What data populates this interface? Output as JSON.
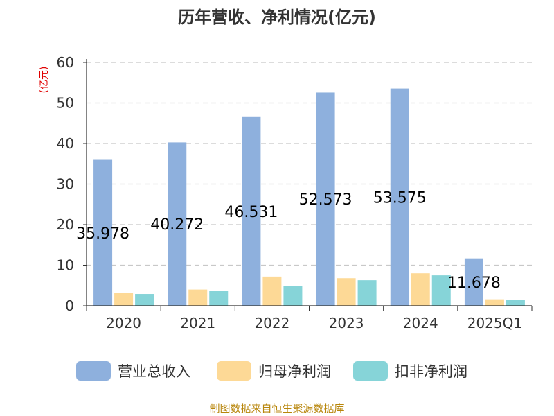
{
  "chart_data": {
    "type": "bar",
    "title": "历年营收、净利情况(亿元)",
    "ylabel": "(亿元)",
    "ylim": [
      0,
      60
    ],
    "yticks": [
      0,
      10,
      20,
      30,
      40,
      50,
      60
    ],
    "grid": true,
    "legend_position": "bottom",
    "categories": [
      "2020",
      "2021",
      "2022",
      "2023",
      "2024",
      "2025Q1"
    ],
    "series": [
      {
        "name": "营业总收入",
        "color": "#8eb0dd",
        "values": [
          35.978,
          40.272,
          46.531,
          52.573,
          53.575,
          11.678
        ],
        "labels": [
          "35.978",
          "40.272",
          "46.531",
          "52.573",
          "53.575",
          "11.678"
        ]
      },
      {
        "name": "归母净利润",
        "color": "#fdd996",
        "values": [
          3.2,
          4.0,
          7.2,
          6.8,
          8.0,
          1.6
        ]
      },
      {
        "name": "扣非净利润",
        "color": "#86d4d8",
        "values": [
          2.9,
          3.6,
          4.9,
          6.3,
          7.5,
          1.5
        ]
      }
    ]
  },
  "source": "制图数据来自恒生聚源数据库"
}
